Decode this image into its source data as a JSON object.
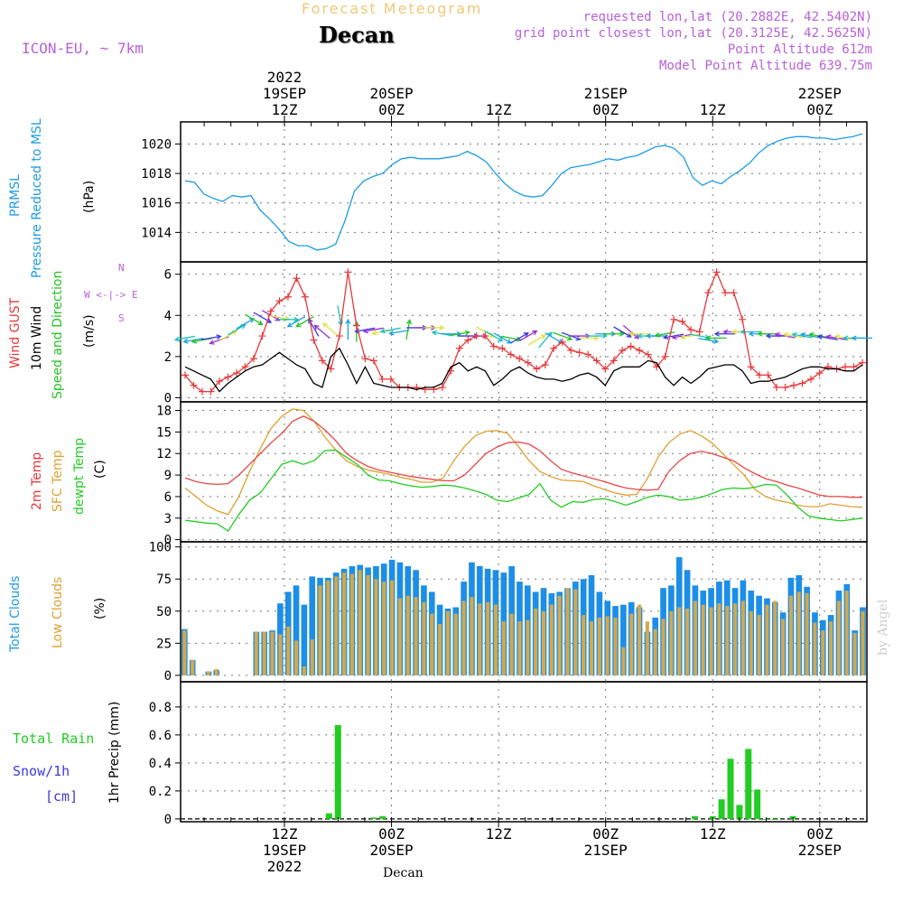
{
  "header": {
    "super_title": "Forecast Meteogram",
    "location": "Decan",
    "model": "ICON-EU, ~ 7km",
    "requested": "requested lon,lat (20.2882E, 42.5402N)",
    "grid_point": "grid point closest lon,lat (20.3125E, 42.5625N)",
    "point_altitude": "Point Altitude 612m",
    "model_altitude": "Model Point Altitude 639.75m",
    "credit": "by Angel",
    "footer": "Decan"
  },
  "colors": {
    "pressure": "#1e9be6",
    "gust": "#e8383a",
    "wind": "#000000",
    "dir": "#22c322",
    "temp2m": "#ea4545",
    "sfc": "#e0a030",
    "dew": "#22cc22",
    "total": "#1c8ee8",
    "low": "#d4a84c",
    "rain": "#22cc22",
    "snow": "#3a3ae0",
    "header": "#b860d8",
    "title_orange": "#f0c878"
  },
  "time_axis": {
    "top_labels": [
      {
        "line1": "2022",
        "line2": "19SEP",
        "line3": "12Z",
        "h": 12
      },
      {
        "line1": "",
        "line2": "20SEP",
        "line3": "00Z",
        "h": 24
      },
      {
        "line1": "",
        "line2": "",
        "line3": "12Z",
        "h": 36
      },
      {
        "line1": "",
        "line2": "21SEP",
        "line3": "00Z",
        "h": 48
      },
      {
        "line1": "",
        "line2": "",
        "line3": "12Z",
        "h": 60
      },
      {
        "line1": "",
        "line2": "22SEP",
        "line3": "00Z",
        "h": 72
      }
    ],
    "bottom_labels": [
      {
        "line1": "12Z",
        "line2": "19SEP",
        "line3": "2022",
        "h": 12
      },
      {
        "line1": "00Z",
        "line2": "20SEP",
        "line3": "",
        "h": 24
      },
      {
        "line1": "12Z",
        "line2": "",
        "line3": "",
        "h": 36
      },
      {
        "line1": "00Z",
        "line2": "21SEP",
        "line3": "",
        "h": 48
      },
      {
        "line1": "12Z",
        "line2": "",
        "line3": "",
        "h": 60
      },
      {
        "line1": "00Z",
        "line2": "22SEP",
        "line3": "",
        "h": 72
      }
    ]
  },
  "labels": {
    "pressure": [
      "PRMSL",
      "Pressure Reduced to MSL",
      "(hPa)"
    ],
    "wind": [
      "Wind GUST",
      "10m Wind",
      "Speed and Direction",
      "(m/s)"
    ],
    "compass": {
      "n": "N",
      "s": "S",
      "e": "E",
      "w": "W",
      "row": "W <-|-> E"
    },
    "temp": [
      "2m Temp",
      "SFC Temp",
      "dewpt Temp",
      "(C)"
    ],
    "clouds": [
      "Total Clouds",
      "Low Clouds",
      "(%)"
    ],
    "precip": [
      "Total  Rain",
      "Snow/1h",
      "[cm]",
      "1hr Precip (mm)"
    ]
  },
  "chart_data": [
    {
      "type": "line",
      "title": "PRMSL Pressure Reduced to MSL",
      "ylabel": "(hPa)",
      "ylim": [
        1012,
        1021.5
      ],
      "yticks": [
        1014,
        1016,
        1018,
        1020
      ],
      "series": [
        {
          "name": "Pressure",
          "values": [
            1017.5,
            1017.4,
            1016.6,
            1016.3,
            1016.1,
            1016.5,
            1016.4,
            1016.5,
            1015.5,
            1014.9,
            1014.2,
            1013.4,
            1013.1,
            1013.1,
            1012.8,
            1012.9,
            1013.2,
            1014.8,
            1016.8,
            1017.5,
            1017.8,
            1018.0,
            1018.6,
            1019.0,
            1019.1,
            1019.0,
            1019.0,
            1019.0,
            1019.1,
            1019.2,
            1019.5,
            1019.2,
            1018.8,
            1018.0,
            1017.3,
            1016.8,
            1016.5,
            1016.4,
            1016.5,
            1017.2,
            1018.0,
            1018.4,
            1018.5,
            1018.6,
            1018.8,
            1019.0,
            1018.9,
            1019.1,
            1019.2,
            1019.5,
            1019.8,
            1019.9,
            1019.7,
            1019.1,
            1017.7,
            1017.2,
            1017.5,
            1017.3,
            1017.8,
            1018.2,
            1018.7,
            1019.4,
            1019.9,
            1020.2,
            1020.4,
            1020.5,
            1020.5,
            1020.4,
            1020.4,
            1020.3,
            1020.4,
            1020.5,
            1020.7
          ]
        }
      ]
    },
    {
      "type": "line",
      "title": "Wind GUST / 10m Wind Speed and Direction",
      "ylabel": "(m/s)",
      "ylim": [
        -0.2,
        6.6
      ],
      "yticks": [
        0,
        2,
        4,
        6
      ],
      "series": [
        {
          "name": "Wind GUST",
          "values": [
            1.1,
            0.6,
            0.3,
            0.3,
            0.8,
            1.0,
            1.2,
            1.5,
            1.9,
            3.0,
            4.2,
            4.7,
            4.9,
            5.8,
            4.9,
            2.8,
            1.8,
            1.4,
            3.0,
            6.1,
            3.5,
            1.9,
            1.8,
            0.9,
            0.9,
            0.5,
            0.5,
            0.5,
            0.4,
            0.4,
            0.5,
            1.3,
            2.4,
            2.8,
            3.0,
            3.0,
            2.5,
            2.4,
            2.1,
            1.9,
            1.7,
            1.4,
            1.6,
            2.4,
            2.7,
            2.3,
            2.2,
            2.1,
            1.8,
            1.4,
            1.8,
            2.3,
            2.5,
            2.3,
            2.1,
            1.5,
            2.0,
            3.8,
            3.7,
            3.3,
            3.2,
            5.1,
            6.1,
            5.1,
            5.1,
            3.8,
            1.5,
            1.1,
            1.1,
            0.5,
            0.5,
            0.6,
            0.7,
            0.9,
            1.2,
            1.5,
            1.4,
            1.5,
            1.5,
            1.7
          ]
        },
        {
          "name": "10m Wind",
          "values": [
            1.5,
            1.3,
            1.1,
            0.9,
            0.3,
            0.7,
            1.0,
            1.3,
            1.5,
            1.6,
            1.9,
            2.2,
            1.9,
            1.6,
            1.4,
            0.7,
            0.5,
            2.0,
            2.4,
            1.6,
            0.7,
            1.5,
            0.7,
            0.6,
            0.5,
            0.5,
            0.5,
            0.4,
            0.5,
            0.5,
            0.7,
            1.5,
            1.7,
            1.3,
            1.5,
            1.3,
            0.6,
            0.9,
            1.3,
            1.5,
            1.2,
            1.0,
            0.9,
            0.9,
            0.8,
            0.9,
            1.1,
            1.2,
            1.0,
            0.6,
            1.3,
            1.5,
            1.5,
            1.5,
            1.8,
            1.7,
            1.0,
            0.6,
            1.0,
            0.7,
            1.0,
            1.4,
            1.5,
            1.6,
            1.6,
            1.3,
            0.7,
            0.8,
            0.8,
            0.9,
            1.0,
            1.2,
            1.4,
            1.5,
            1.5,
            1.4,
            1.4,
            1.3,
            1.3,
            1.6
          ]
        }
      ],
      "direction_deg": [
        80,
        80,
        80,
        260,
        70,
        240,
        240,
        240,
        300,
        300,
        300,
        280,
        270,
        60,
        60,
        150,
        130,
        130,
        350,
        180,
        180,
        80,
        80,
        80,
        80,
        80,
        190,
        270,
        270,
        270,
        100,
        270,
        260,
        270,
        270,
        300,
        300,
        300,
        280,
        240,
        240,
        240,
        220,
        300,
        290,
        290,
        270,
        270,
        270,
        270,
        270,
        300,
        310,
        90,
        90,
        90,
        80,
        80,
        80,
        80,
        280,
        280,
        90,
        90,
        90,
        90,
        90,
        90,
        90,
        90,
        100,
        100,
        100,
        100,
        100,
        100,
        100,
        100,
        90,
        90
      ],
      "direction_speed": [
        2.9,
        2.8,
        2.8,
        2.9,
        2.8,
        3.0,
        3.3,
        3.6,
        3.8,
        3.9,
        4.0,
        3.9,
        3.8,
        3.7,
        3.7,
        3.4,
        3.2,
        3.3,
        4.0,
        3.3,
        3.2,
        3.3,
        3.3,
        3.2,
        3.3,
        3.2,
        3.3,
        3.4,
        3.4,
        3.4,
        3.1,
        3.1,
        3.1,
        3.0,
        3.0,
        3.2,
        3.0,
        2.9,
        2.9,
        2.9,
        3.0,
        2.8,
        2.8,
        2.9,
        3.0,
        3.0,
        3.0,
        2.9,
        3.0,
        3.1,
        3.1,
        3.2,
        3.2,
        3.1,
        3.0,
        3.0,
        3.1,
        3.0,
        3.0,
        3.0,
        3.0,
        2.8,
        2.9,
        3.1,
        3.2,
        3.2,
        3.2,
        3.1,
        3.1,
        3.0,
        3.0,
        3.0,
        3.0,
        3.0,
        3.0,
        2.9,
        2.9,
        2.9,
        2.9,
        2.9
      ]
    },
    {
      "type": "line",
      "title": "2m Temp / SFC Temp / dewpt Temp",
      "ylabel": "(C)",
      "ylim": [
        -0.3,
        19.2
      ],
      "yticks": [
        0,
        3,
        6,
        9,
        12,
        15,
        18
      ],
      "series": [
        {
          "name": "2m Temp",
          "values": [
            8.6,
            8.1,
            7.8,
            7.7,
            7.8,
            9.0,
            10.5,
            12.0,
            13.5,
            14.8,
            16.5,
            17.2,
            16.5,
            15.3,
            13.8,
            12.0,
            11.0,
            10.2,
            9.7,
            9.4,
            9.1,
            8.8,
            8.6,
            8.4,
            8.2,
            8.2,
            9.0,
            10.5,
            12.0,
            12.9,
            13.5,
            13.6,
            13.3,
            12.4,
            11.0,
            9.8,
            9.3,
            8.9,
            8.5,
            8.1,
            7.6,
            7.2,
            7.0,
            6.9,
            7.0,
            9.5,
            11.0,
            12.0,
            12.3,
            12.0,
            11.5,
            11.0,
            10.0,
            9.2,
            8.5,
            8.1,
            7.6,
            7.2,
            6.7,
            6.2,
            6.0,
            6.0,
            5.9,
            5.9
          ]
        },
        {
          "name": "SFC Temp",
          "values": [
            7.2,
            6.0,
            4.8,
            4.0,
            3.5,
            6.0,
            9.5,
            12.7,
            15.5,
            17.2,
            18.2,
            18.0,
            16.5,
            14.3,
            12.5,
            11.0,
            10.2,
            9.7,
            9.4,
            9.1,
            8.7,
            8.4,
            8.0,
            8.0,
            8.6,
            11.0,
            13.0,
            14.5,
            15.1,
            15.2,
            14.8,
            13.0,
            11.0,
            9.5,
            8.8,
            8.3,
            8.2,
            8.1,
            7.5,
            7.0,
            6.5,
            6.2,
            6.3,
            8.5,
            11.5,
            13.5,
            14.7,
            15.2,
            14.5,
            13.5,
            12.0,
            10.5,
            9.0,
            7.0,
            6.0,
            5.5,
            5.2,
            4.8,
            4.6,
            4.6,
            5.0,
            4.8,
            4.6,
            4.5
          ]
        },
        {
          "name": "dewpt Temp",
          "values": [
            2.7,
            2.5,
            2.3,
            2.2,
            1.2,
            3.5,
            5.5,
            6.5,
            8.5,
            10.5,
            11.0,
            10.5,
            11.0,
            12.4,
            12.5,
            11.5,
            10.5,
            9.0,
            8.3,
            8.2,
            7.8,
            7.5,
            7.3,
            7.4,
            7.6,
            7.5,
            7.2,
            6.8,
            6.3,
            5.5,
            5.3,
            5.8,
            6.3,
            7.8,
            5.5,
            4.5,
            5.3,
            5.2,
            5.6,
            5.7,
            5.3,
            4.8,
            5.3,
            5.9,
            6.2,
            6.0,
            5.5,
            5.6,
            5.9,
            6.4,
            7.0,
            7.2,
            7.1,
            7.3,
            7.7,
            7.6,
            6.2,
            4.5,
            3.3,
            3.0,
            2.8,
            2.6,
            2.8,
            3.0
          ]
        }
      ]
    },
    {
      "type": "bar",
      "title": "Total Clouds / Low Clouds",
      "ylabel": "(%)",
      "ylim": [
        -5,
        104
      ],
      "yticks": [
        0,
        25,
        50,
        75,
        100
      ],
      "series": [
        {
          "name": "Total Clouds",
          "values": [
            36,
            12,
            0,
            3,
            4,
            0,
            0,
            0,
            0,
            34,
            34,
            35,
            56,
            65,
            70,
            55,
            77,
            76,
            76,
            80,
            83,
            85,
            86,
            84,
            85,
            87,
            90,
            88,
            85,
            82,
            70,
            65,
            55,
            52,
            53,
            73,
            88,
            85,
            83,
            82,
            80,
            85,
            73,
            70,
            65,
            68,
            64,
            65,
            68,
            73,
            75,
            78,
            65,
            58,
            54,
            55,
            57,
            53,
            34,
            45,
            68,
            70,
            92,
            82,
            70,
            66,
            68,
            73,
            74,
            68,
            74,
            66,
            62,
            60,
            57,
            49,
            76,
            78,
            69,
            49,
            43,
            47,
            66,
            71,
            35,
            53
          ]
        },
        {
          "name": "Low Clouds",
          "values": [
            35,
            12,
            0,
            3,
            5,
            0,
            0,
            0,
            0,
            34,
            34,
            34,
            32,
            38,
            27,
            7,
            28,
            70,
            74,
            77,
            80,
            79,
            82,
            78,
            75,
            73,
            74,
            60,
            62,
            61,
            57,
            48,
            40,
            50,
            48,
            58,
            61,
            56,
            57,
            55,
            42,
            48,
            42,
            43,
            52,
            50,
            55,
            62,
            68,
            67,
            47,
            42,
            45,
            46,
            45,
            22,
            48,
            55,
            42,
            36,
            44,
            50,
            53,
            52,
            58,
            55,
            53,
            56,
            54,
            56,
            58,
            50,
            47,
            55,
            58,
            44,
            62,
            65,
            64,
            41,
            35,
            42,
            58,
            66,
            33,
            50
          ]
        }
      ]
    },
    {
      "type": "bar",
      "title": "1hr Precip",
      "ylabel": "1hr Precip (mm)",
      "ylim": [
        -0.02,
        0.98
      ],
      "yticks": [
        0,
        0.2,
        0.4,
        0.6,
        0.8
      ],
      "series": [
        {
          "name": "Total Rain",
          "x": [
            17,
            18,
            22,
            23,
            58,
            60,
            61,
            62,
            63,
            64,
            65,
            66,
            67,
            69
          ],
          "values": [
            0.04,
            0.67,
            0.01,
            0.02,
            0.02,
            0.02,
            0.14,
            0.43,
            0.1,
            0.5,
            0.21,
            0.0,
            0.0,
            0.02
          ]
        },
        {
          "name": "Snow/1h",
          "x": [],
          "values": []
        }
      ]
    }
  ]
}
